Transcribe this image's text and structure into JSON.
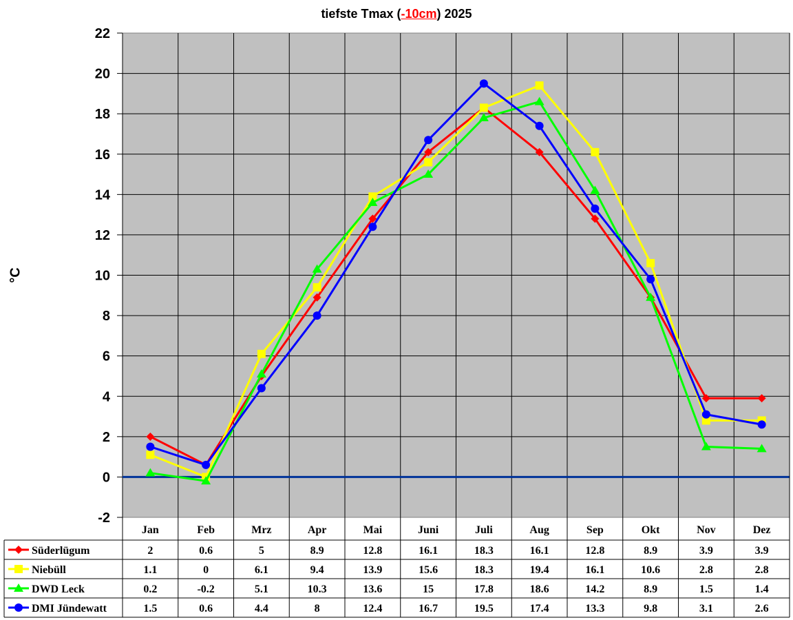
{
  "title": {
    "prefix": "tiefste Tmax (",
    "highlight": "-10cm",
    "suffix": ") 2025"
  },
  "colors": {
    "plot_bg": "#c0c0c0",
    "grid": "#000000",
    "zero_line": "#003399",
    "highlight": "#ff0000"
  },
  "chart_data": {
    "type": "line",
    "title": "tiefste Tmax (-10cm) 2025",
    "xlabel": "",
    "ylabel": "°C",
    "ylim": [
      -2,
      22
    ],
    "yticks": [
      -2,
      0,
      2,
      4,
      6,
      8,
      10,
      12,
      14,
      16,
      18,
      20,
      22
    ],
    "grid": true,
    "legend_position": "data-table-below",
    "categories": [
      "Jan",
      "Feb",
      "Mrz",
      "Apr",
      "Mai",
      "Juni",
      "Juli",
      "Aug",
      "Sep",
      "Okt",
      "Nov",
      "Dez"
    ],
    "series": [
      {
        "name": "Süderlügum",
        "color": "#ff0000",
        "marker": "diamond",
        "values": [
          2,
          0.6,
          5,
          8.9,
          12.8,
          16.1,
          18.3,
          16.1,
          12.8,
          8.9,
          3.9,
          3.9
        ]
      },
      {
        "name": "Niebüll",
        "color": "#ffff00",
        "marker": "square",
        "values": [
          1.1,
          0,
          6.1,
          9.4,
          13.9,
          15.6,
          18.3,
          19.4,
          16.1,
          10.6,
          2.8,
          2.8
        ]
      },
      {
        "name": "DWD Leck",
        "color": "#00ff00",
        "marker": "triangle",
        "values": [
          0.2,
          -0.2,
          5.1,
          10.3,
          13.6,
          15,
          17.8,
          18.6,
          14.2,
          8.9,
          1.5,
          1.4
        ]
      },
      {
        "name": "DMI Jündewatt",
        "color": "#0000ff",
        "marker": "circle",
        "values": [
          1.5,
          0.6,
          4.4,
          8,
          12.4,
          16.7,
          19.5,
          17.4,
          13.3,
          9.8,
          3.1,
          2.6
        ]
      }
    ]
  }
}
